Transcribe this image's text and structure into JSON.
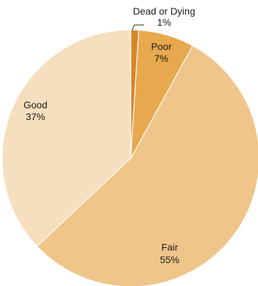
{
  "chart_data": {
    "type": "pie",
    "categories": [
      "Dead or Dying",
      "Poor",
      "Fair",
      "Good"
    ],
    "values": [
      1,
      7,
      55,
      37
    ],
    "value_labels": [
      "1%",
      "7%",
      "55%",
      "37%"
    ],
    "colors": [
      "#d6862a",
      "#e8a84d",
      "#f0c58a",
      "#f6dfbe"
    ]
  }
}
